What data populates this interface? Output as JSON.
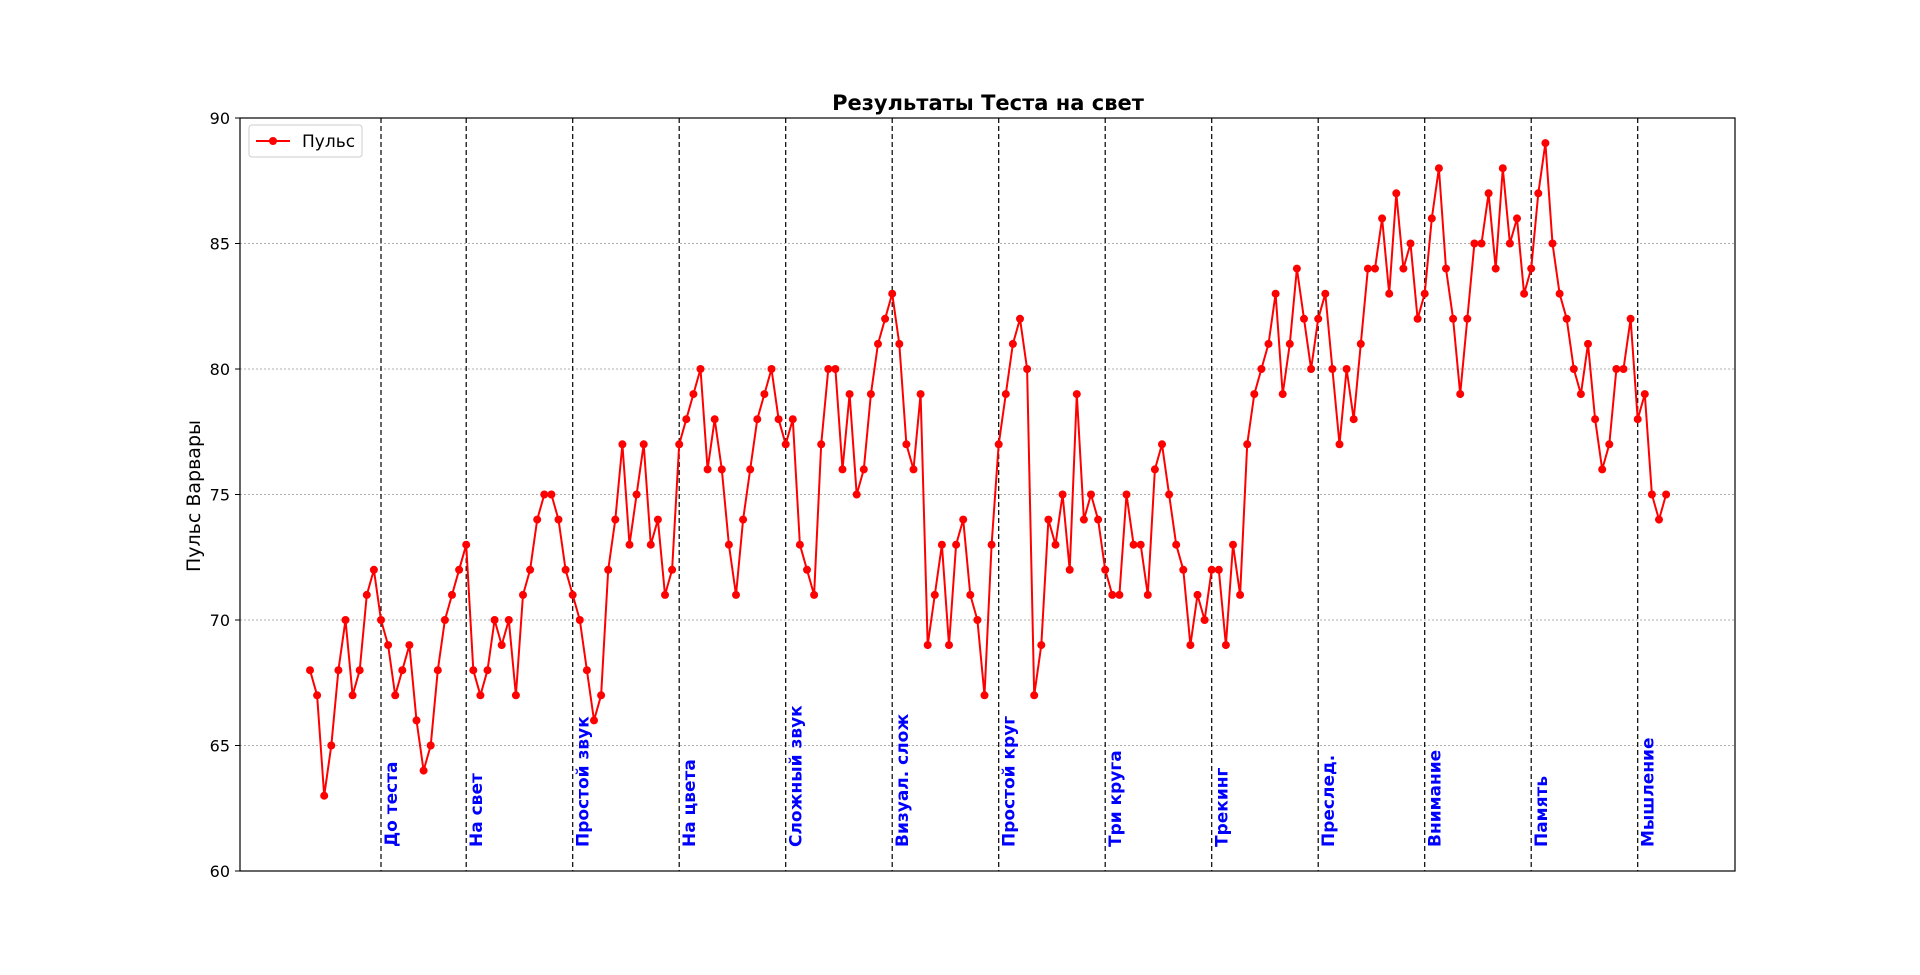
{
  "colors": {
    "series": "#ff0000",
    "section_label": "#0000ff",
    "grid": "#b0b0b0",
    "divider": "#000000"
  },
  "chart_data": {
    "type": "line",
    "title": "Результаты Теста на свет",
    "xlabel": "",
    "ylabel": "Пульс Варвары",
    "ylim": [
      60,
      90
    ],
    "xlim": [
      0,
      210
    ],
    "yticks": [
      60,
      65,
      70,
      75,
      80,
      85,
      90
    ],
    "grid": "horizontal dotted",
    "legend": {
      "position": "upper-left"
    },
    "series": [
      {
        "name": "Пульс",
        "marker": "circle",
        "values": [
          68,
          67,
          63,
          65,
          68,
          70,
          67,
          68,
          71,
          72,
          70,
          69,
          67,
          68,
          69,
          66,
          64,
          65,
          68,
          70,
          71,
          72,
          73,
          68,
          67,
          68,
          70,
          69,
          70,
          67,
          71,
          72,
          74,
          75,
          75,
          74,
          72,
          71,
          70,
          68,
          66,
          67,
          72,
          74,
          77,
          73,
          75,
          77,
          73,
          74,
          71,
          72,
          77,
          78,
          79,
          80,
          76,
          78,
          76,
          73,
          71,
          74,
          76,
          78,
          79,
          80,
          78,
          77,
          78,
          73,
          72,
          71,
          77,
          80,
          80,
          76,
          79,
          75,
          76,
          79,
          81,
          82,
          83,
          81,
          77,
          76,
          79,
          69,
          71,
          73,
          69,
          73,
          74,
          71,
          70,
          67,
          73,
          77,
          79,
          81,
          82,
          80,
          67,
          69,
          74,
          73,
          75,
          72,
          79,
          74,
          75,
          74,
          72,
          71,
          71,
          75,
          73,
          73,
          71,
          76,
          77,
          75,
          73,
          72,
          69,
          71,
          70,
          72,
          72,
          69,
          73,
          71,
          77,
          79,
          80,
          81,
          83,
          79,
          81,
          84,
          82,
          80,
          82,
          83,
          80,
          77,
          80,
          78,
          81,
          84,
          84,
          86,
          83,
          87,
          84,
          85,
          82,
          83,
          86,
          88,
          84,
          82,
          79,
          82,
          85,
          85,
          87,
          84,
          88,
          85,
          86,
          83,
          84,
          87,
          89,
          85,
          83,
          82,
          80,
          79,
          81,
          78,
          76,
          77,
          80,
          80,
          82,
          78,
          79,
          75,
          74,
          75
        ]
      }
    ],
    "sections": [
      {
        "label": "До теста",
        "x": 10
      },
      {
        "label": "На свет",
        "x": 22
      },
      {
        "label": "Простой звук",
        "x": 37
      },
      {
        "label": "На цвета",
        "x": 52
      },
      {
        "label": "Сложный звук",
        "x": 67
      },
      {
        "label": "Визуал. слож",
        "x": 82
      },
      {
        "label": "Простой круг",
        "x": 97
      },
      {
        "label": "Три круга",
        "x": 112
      },
      {
        "label": "Трекинг",
        "x": 127
      },
      {
        "label": "Преслед.",
        "x": 142
      },
      {
        "label": "Внимание",
        "x": 157
      },
      {
        "label": "Память",
        "x": 172
      },
      {
        "label": "Мышление",
        "x": 187
      }
    ]
  }
}
